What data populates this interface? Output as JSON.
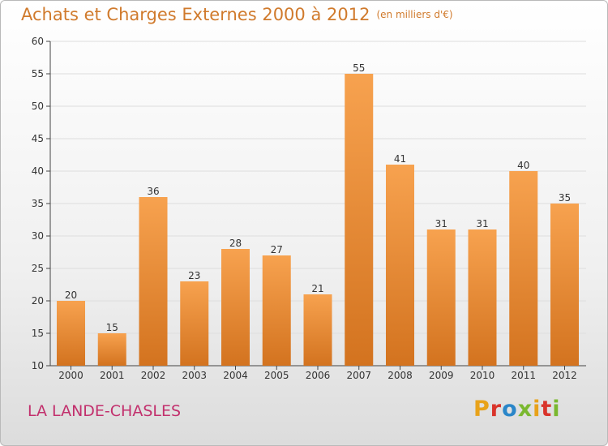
{
  "header": {
    "title": "Achats et Charges Externes 2000 à 2012",
    "unit": "(en milliers d'€)"
  },
  "footer": {
    "commune": "LA LANDE-CHASLES",
    "logo_text": "Proxiti",
    "logo_colors": [
      "#e8a21a",
      "#d9342b",
      "#2a86c9",
      "#7ab82f",
      "#e8a21a",
      "#d9342b",
      "#7ab82f"
    ]
  },
  "colors": {
    "bar_light": "#f7a24f",
    "bar_dark": "#d3731f",
    "title": "#d07a2c",
    "commune": "#c2306d",
    "grid": "#dddddd"
  },
  "chart_data": {
    "type": "bar",
    "title": "Achats et Charges Externes 2000 à 2012",
    "subtitle": "(en milliers d'€)",
    "xlabel": "",
    "ylabel": "",
    "categories": [
      "2000",
      "2001",
      "2002",
      "2003",
      "2004",
      "2005",
      "2006",
      "2007",
      "2008",
      "2009",
      "2010",
      "2011",
      "2012"
    ],
    "values": [
      20,
      15,
      36,
      23,
      28,
      27,
      21,
      55,
      41,
      31,
      31,
      40,
      35
    ],
    "data_labels": [
      "20",
      "15",
      "36",
      "23",
      "28",
      "27",
      "21",
      "55",
      "41",
      "31",
      "31",
      "40",
      "35"
    ],
    "ylim": [
      10,
      60
    ],
    "yticks": [
      10,
      15,
      20,
      25,
      30,
      35,
      40,
      45,
      50,
      55,
      60
    ],
    "ytick_labels": [
      "10",
      "15",
      "20",
      "25",
      "30",
      "35",
      "40",
      "45",
      "50",
      "55",
      "60"
    ],
    "grid": true,
    "legend": "none"
  }
}
